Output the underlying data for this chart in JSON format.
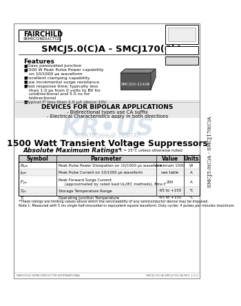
{
  "bg_color": "#ffffff",
  "page_bg": "#f5f5f5",
  "border_color": "#000000",
  "title": "SMCJ5.0(C)A - SMCJ170(C)A",
  "subtitle": "1500 Watt Transient Voltage Suppressors",
  "devices_header": "DEVICES FOR BIPOLAR APPLICATIONS",
  "devices_line1": "- Bidirectional types use CA suffix",
  "devices_line2": "- Electrical Characteristics apply in both directions",
  "abs_max_title": "Absolute Maximum Ratings*",
  "abs_max_note": "Tₖ = 25°C unless otherwise noted",
  "table_headers": [
    "Symbol",
    "Parameter",
    "Value",
    "Units"
  ],
  "table_rows": [
    [
      "Pₚₚₖ",
      "Peak Pulse Power Dissipation on 10/1000 μs waveform",
      "minimum 1500",
      "W"
    ],
    [
      "Iₚₚₖ",
      "Peak Pulse Current on 10/1000 μs waveform",
      "see table",
      "A"
    ],
    [
      "Iᴼₚₖ",
      "Peak Forward Surge Current\n     (approximated by rated load UL/IEC methods), 8ms tᴵ",
      "200",
      "A"
    ],
    [
      "Tₚₖ",
      "Storage Temperature Range",
      "-65 to +150",
      "°C"
    ],
    [
      "Tⱼ",
      "Operating Junction Temperature",
      "-65 to +150",
      "°C"
    ]
  ],
  "features_title": "Features",
  "features": [
    "Glass passivated junction",
    "1500 W Peak Pulse Power capability\n  on 10/1000 μs waveform",
    "Excellent clamping capability",
    "Low incremental surge resistance",
    "Fast response time; typically less\n  than 1.0 ps from 0 volts to BV for\n  unidirectional and 5.0 ns for\n  bidirectional",
    "Typical Iᴼ less than 1.0 μA above 10V"
  ],
  "package_name": "SMC/DO-214AB",
  "side_label": "SMCJ5.0(C)A - SMCJ170(C)A",
  "footer_left": "FAIRCHILD SEMICONDUCTOR INTERNATIONAL",
  "footer_right": "SMCJ5.0(C)A-SMCJ170(C)A REV. 1.0.2",
  "footnote1": "*These ratings are limiting values above which the serviceability of any semiconductor device may be impaired.",
  "footnote2": "Note 1: Measured with 5 ms single half-sinusoidal or equivalent square waveform. Duty cycles: 4 pulses per minutes maximum.",
  "watermark_text": "ЭЛЕКТРОННЫЙ  ПОРТАЛ",
  "watermark_url": "KR•US"
}
